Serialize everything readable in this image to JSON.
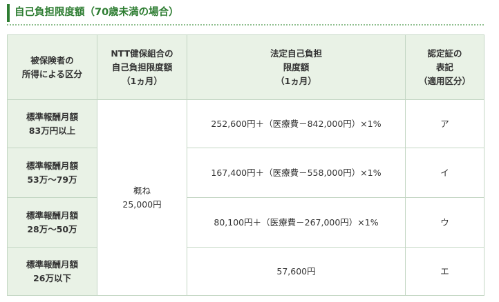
{
  "heading": "自己負担限度額（70歳未満の場合）",
  "table": {
    "headers": [
      [
        "被保険者の",
        "所得による区分"
      ],
      [
        "NTT健保組合の",
        "自己負担限度額",
        "（1ヵ月）"
      ],
      [
        "法定自己負担",
        "限度額",
        "（1ヵ月）"
      ],
      [
        "認定証の",
        "表記",
        "（適用区分）"
      ]
    ],
    "shared_limit": [
      "概ね",
      "25,000円"
    ],
    "rows": [
      {
        "category": [
          "標準報酬月額",
          "83万円以上"
        ],
        "legal": "252,600円＋（医療費－842,000円）×1%",
        "label": "ア"
      },
      {
        "category": [
          "標準報酬月額",
          "53万～79万"
        ],
        "legal": "167,400円＋（医療費－558,000円）×1%",
        "label": "イ"
      },
      {
        "category": [
          "標準報酬月額",
          "28万～50万"
        ],
        "legal": "80,100円＋（医療費－267,000円）×1%",
        "label": "ウ"
      },
      {
        "category": [
          "標準報酬月額",
          "26万以下"
        ],
        "legal": "57,600円",
        "label": "エ"
      }
    ]
  }
}
